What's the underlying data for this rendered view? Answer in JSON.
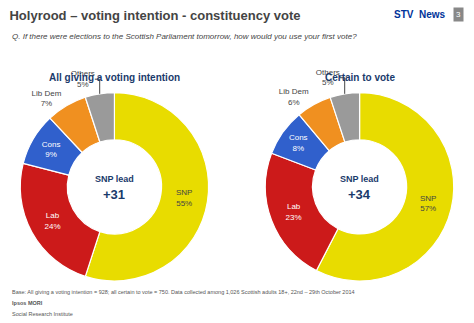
{
  "title": "Holyrood – voting intention - constituency vote",
  "subtitle": "Q. If there were elections to the Scottish Parliament tomorrow, how would you use your first vote?",
  "logo": [
    "STV  News",
    "3"
  ],
  "footer": [
    "Base: All giving a voting intention = 928; all certain to vote = 750. Data collected among 1,026 Scottish adults 18+, 22nd – 29th October 2014",
    "Ipsos MORI",
    "Social Research Institute"
  ],
  "chart_data": [
    {
      "type": "pie",
      "title": "All giving a voting intention",
      "categories": [
        "SNP",
        "Lab",
        "Cons",
        "Lib Dem",
        "Others"
      ],
      "values": [
        55,
        24,
        9,
        7,
        5
      ],
      "value_labels": [
        "55%",
        "24%",
        "9%",
        "7%",
        "5%"
      ],
      "colors": [
        "#e8dc00",
        "#cc1a1a",
        "#3060cc",
        "#f09020",
        "#9a9a9a"
      ],
      "data_labels": true,
      "annotations": [
        "SNP lead",
        "+31"
      ]
    },
    {
      "type": "pie",
      "title": "Certain to vote",
      "categories": [
        "SNP",
        "Lab",
        "Cons",
        "Lib Dem",
        "Others"
      ],
      "values": [
        57,
        23,
        8,
        6,
        5
      ],
      "value_labels": [
        "57%",
        "23%",
        "8%",
        "6%",
        "5%"
      ],
      "colors": [
        "#e8dc00",
        "#cc1a1a",
        "#3060cc",
        "#f09020",
        "#9a9a9a"
      ],
      "data_labels": true,
      "annotations": [
        "SNP lead",
        "+34"
      ]
    }
  ]
}
